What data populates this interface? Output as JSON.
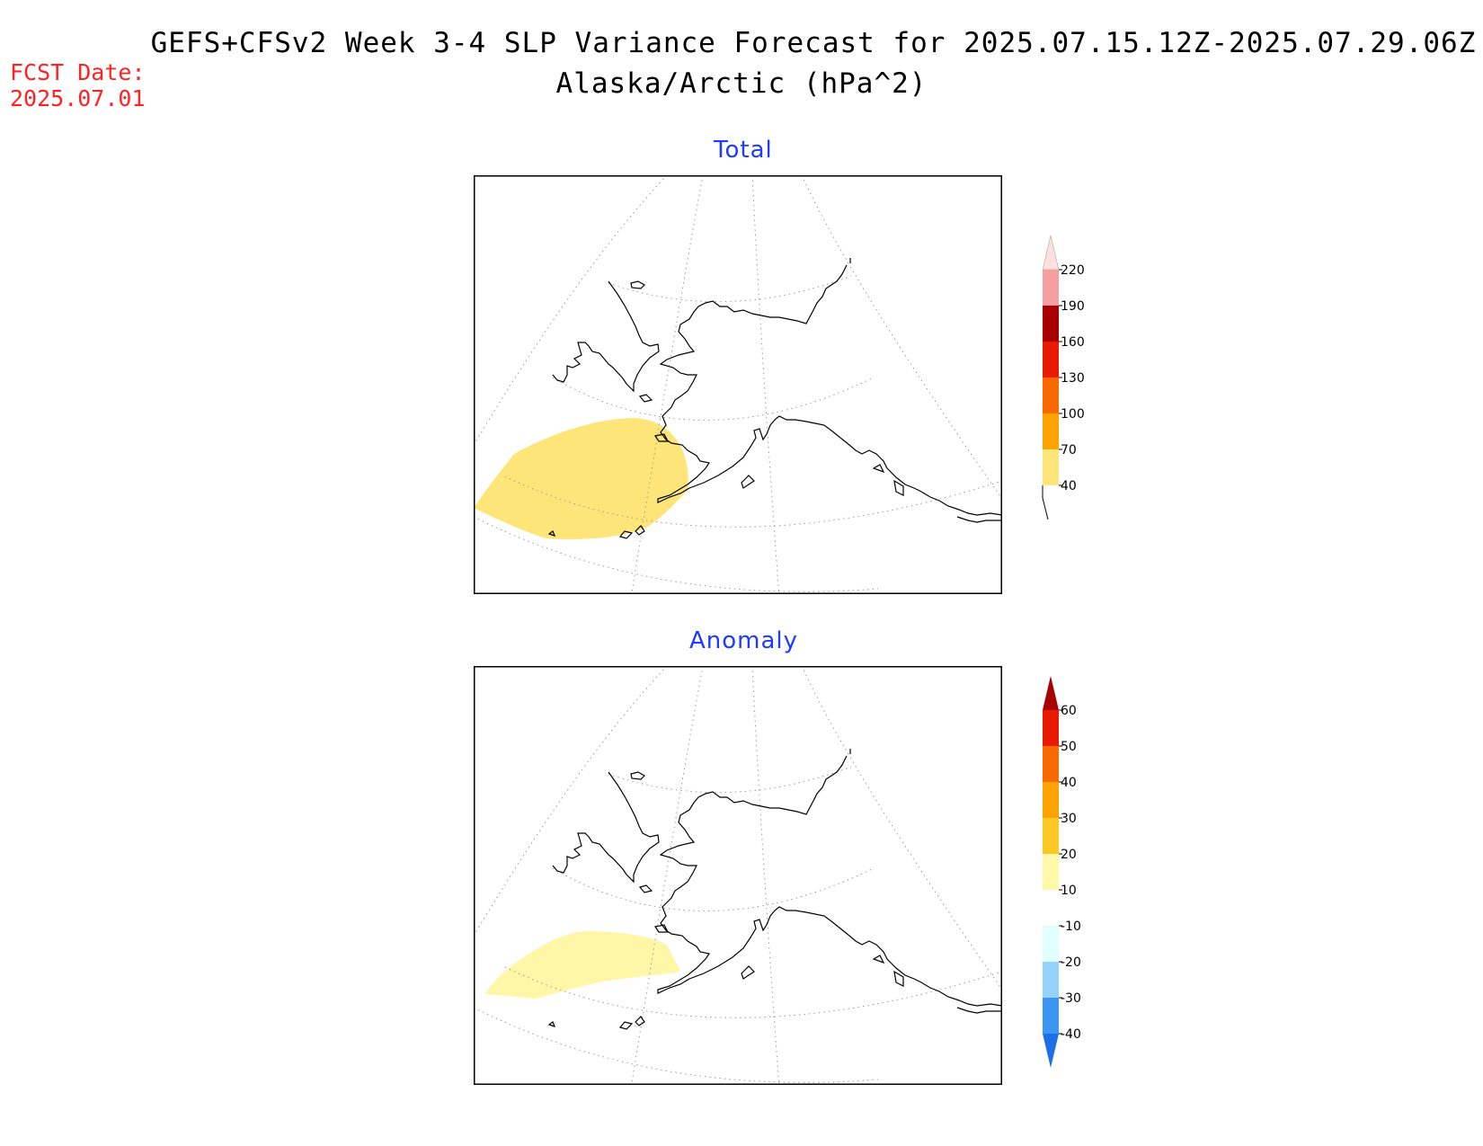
{
  "header": {
    "title_line1": "GEFS+CFSv2 Week 3-4 SLP Variance Forecast for 2025.07.15.12Z-2025.07.29.06Z",
    "title_line2": "Alaska/Arctic (hPa^2)",
    "fcst_label": "FCST Date:",
    "fcst_date": "2025.07.01"
  },
  "panels": [
    {
      "title": "Total",
      "colorbar": {
        "levels": [
          "40",
          "70",
          "100",
          "130",
          "160",
          "190",
          "220"
        ],
        "colors": [
          "#fde57a",
          "#fba300",
          "#f86a00",
          "#e81a00",
          "#a80000",
          "#f5a0a0",
          "#ffdede"
        ],
        "below_color": "#ffffff"
      },
      "shaded_region_color": "#fde57a",
      "shaded_region_level": "40-70"
    },
    {
      "title": "Anomaly",
      "colorbar": {
        "levels": [
          "-40",
          "-30",
          "-20",
          "-10",
          "10",
          "20",
          "30",
          "40",
          "50",
          "60"
        ],
        "colors": [
          "#1e6ee8",
          "#3c96f0",
          "#96d2fa",
          "#e1ffff",
          "#ffffff",
          "#fffaaa",
          "#fdc826",
          "#fba300",
          "#f86a00",
          "#e81a00",
          "#a80000"
        ]
      },
      "shaded_region_color": "#fff6a8",
      "shaded_region_level": "10-20"
    }
  ],
  "map": {
    "coast_color": "#000000",
    "grid_color": "#9a9a9a"
  }
}
